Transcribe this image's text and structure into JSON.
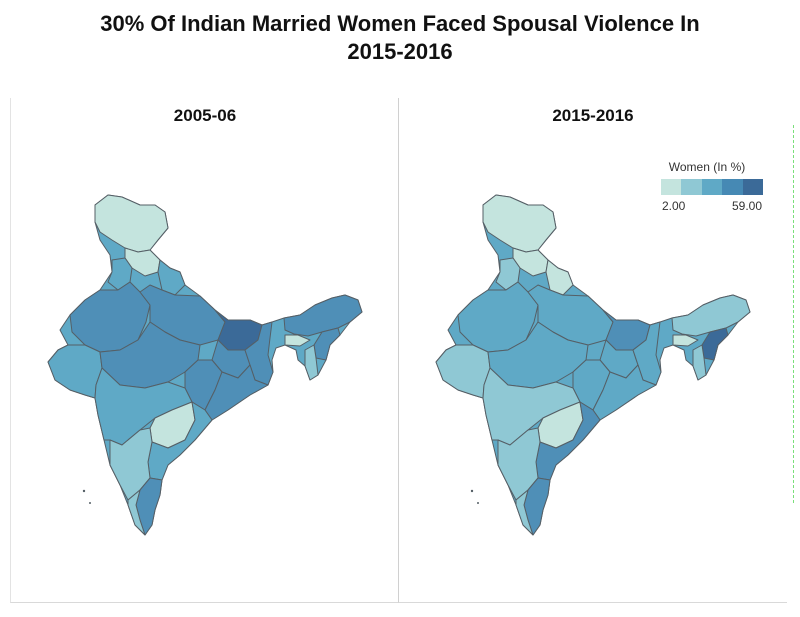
{
  "title": "30% Of Indian Married Women Faced Spousal Violence In 2015-2016",
  "title_line1": "30% Of Indian Married Women Faced Spousal Violence In",
  "title_line2": "2015-2016",
  "panels": [
    {
      "title": "2005-06"
    },
    {
      "title": "2015-2016"
    }
  ],
  "legend": {
    "title": "Women (In %)",
    "min_label": "2.00",
    "max_label": "59.00",
    "colors": [
      "#c4e4de",
      "#8fc8d4",
      "#5fa9c6",
      "#4689b4",
      "#3b6a98"
    ]
  },
  "colors": {
    "level1": "#c4e4de",
    "level2": "#8fc8d4",
    "level3": "#5fa9c6",
    "level4": "#4f8fb7",
    "level5": "#3b6a98",
    "border": "#555f66"
  }
}
